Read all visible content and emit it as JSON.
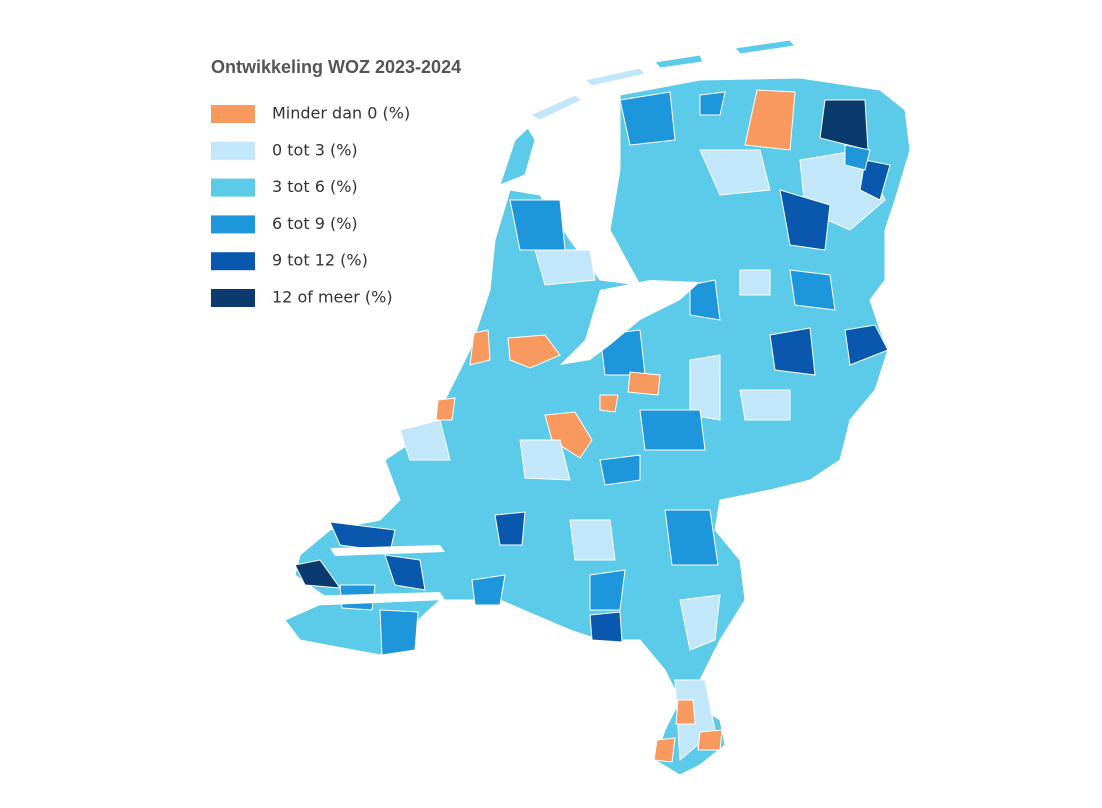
{
  "title": "Ontwikkeling WOZ 2023-2024",
  "legend": [
    {
      "label": "Minder dan 0 (%)",
      "color": "#f89a5f"
    },
    {
      "label": "0 tot 3 (%)",
      "color": "#c2e6fa"
    },
    {
      "label": "3 tot 6 (%)",
      "color": "#5bcbe9"
    },
    {
      "label": "6 tot 9 (%)",
      "color": "#1e96dc"
    },
    {
      "label": "9 tot 12 (%)",
      "color": "#0a58ad"
    },
    {
      "label": "12 of meer (%)",
      "color": "#0b3a6e"
    }
  ]
}
